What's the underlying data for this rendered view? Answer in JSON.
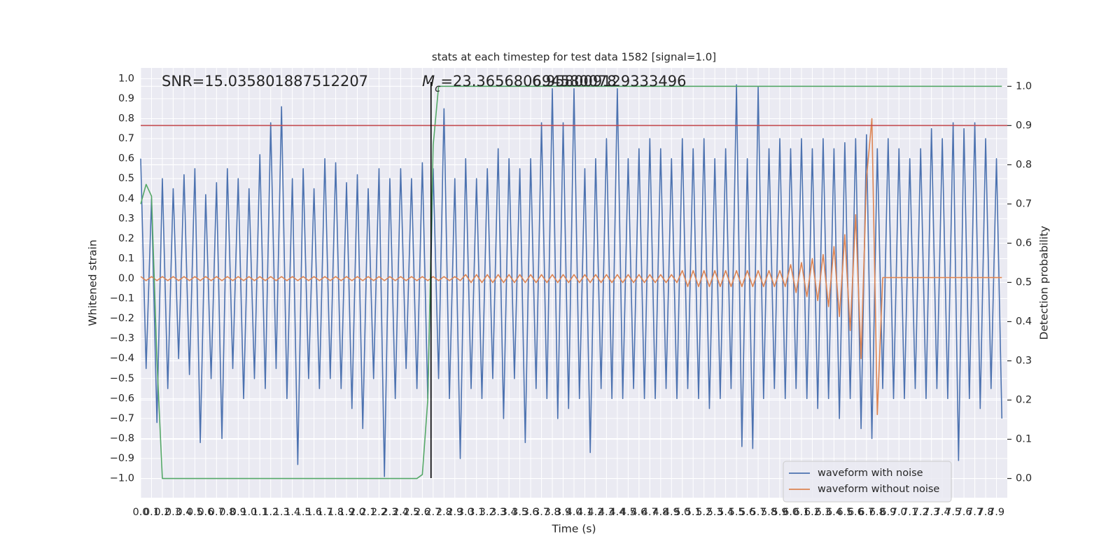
{
  "chart_data": {
    "type": "line",
    "title": "stats at each timestep for test data 1582 [signal=1.0]",
    "x_label": "Time (s)",
    "y_label": "Whitened strain",
    "y2_label": "Detection probability",
    "annotations": [
      {
        "text": "SNR=15.035801887512207"
      },
      {
        "symbol": "M",
        "subscript": "c",
        "text": "=23.365680694580078"
      },
      {
        "text": "6.958009129333496"
      }
    ],
    "x": [
      0,
      0.05,
      0.1,
      0.15,
      0.2,
      0.25,
      0.3,
      0.35,
      0.4,
      0.45,
      0.5,
      0.55,
      0.6,
      0.65,
      0.7,
      0.75,
      0.8,
      0.85,
      0.9,
      0.95,
      1,
      1.05,
      1.1,
      1.15,
      1.2,
      1.25,
      1.3,
      1.35,
      1.4,
      1.45,
      1.5,
      1.55,
      1.6,
      1.65,
      1.7,
      1.75,
      1.8,
      1.85,
      1.9,
      1.95,
      2,
      2.05,
      2.1,
      2.15,
      2.2,
      2.25,
      2.3,
      2.35,
      2.4,
      2.45,
      2.5,
      2.55,
      2.6,
      2.65,
      2.7,
      2.75,
      2.8,
      2.85,
      2.9,
      2.95,
      3,
      3.05,
      3.1,
      3.15,
      3.2,
      3.25,
      3.3,
      3.35,
      3.4,
      3.45,
      3.5,
      3.55,
      3.6,
      3.65,
      3.7,
      3.75,
      3.8,
      3.85,
      3.9,
      3.95,
      4,
      4.05,
      4.1,
      4.15,
      4.2,
      4.25,
      4.3,
      4.35,
      4.4,
      4.45,
      4.5,
      4.55,
      4.6,
      4.65,
      4.7,
      4.75,
      4.8,
      4.85,
      4.9,
      4.95,
      5,
      5.05,
      5.1,
      5.15,
      5.2,
      5.25,
      5.3,
      5.35,
      5.4,
      5.45,
      5.5,
      5.55,
      5.6,
      5.65,
      5.7,
      5.75,
      5.8,
      5.85,
      5.9,
      5.95,
      6,
      6.05,
      6.1,
      6.15,
      6.2,
      6.25,
      6.3,
      6.35,
      6.4,
      6.45,
      6.5,
      6.55,
      6.6,
      6.65,
      6.7,
      6.75,
      6.8,
      6.85,
      6.9,
      6.95,
      7,
      7.05,
      7.1,
      7.15,
      7.2,
      7.25,
      7.3,
      7.35,
      7.4,
      7.45,
      7.5,
      7.55,
      7.6,
      7.65,
      7.7,
      7.75,
      7.8,
      7.85,
      7.9,
      7.95
    ],
    "series": [
      {
        "name": "waveform with noise",
        "color": "#4c72b0",
        "values": [
          0.6,
          -0.45,
          0.4,
          -0.72,
          0.5,
          -0.55,
          0.45,
          -0.4,
          0.52,
          -0.48,
          0.55,
          -0.82,
          0.42,
          -0.5,
          0.48,
          -0.8,
          0.55,
          -0.45,
          0.5,
          -0.6,
          0.45,
          -0.5,
          0.62,
          -0.55,
          0.78,
          -0.45,
          0.86,
          -0.6,
          0.5,
          -0.93,
          0.55,
          -0.5,
          0.45,
          -0.55,
          0.6,
          -0.5,
          0.58,
          -0.55,
          0.48,
          -0.65,
          0.52,
          -0.75,
          0.45,
          -0.5,
          0.55,
          -0.99,
          0.5,
          -0.6,
          0.55,
          -0.45,
          0.5,
          -0.55,
          0.58,
          -0.6,
          0.55,
          -0.5,
          0.85,
          -0.6,
          0.5,
          -0.9,
          0.6,
          -0.55,
          0.5,
          -0.6,
          0.55,
          -0.5,
          0.65,
          -0.7,
          0.6,
          -0.5,
          0.55,
          -0.82,
          0.6,
          -0.55,
          0.78,
          -0.6,
          0.95,
          -0.7,
          0.78,
          -0.65,
          0.95,
          -0.6,
          0.55,
          -0.87,
          0.6,
          -0.55,
          0.7,
          -0.6,
          0.95,
          -0.6,
          0.6,
          -0.55,
          0.65,
          -0.6,
          0.7,
          -0.6,
          0.65,
          -0.55,
          0.6,
          -0.6,
          0.7,
          -0.55,
          0.65,
          -0.6,
          0.7,
          -0.65,
          0.6,
          -0.6,
          0.65,
          -0.55,
          0.97,
          -0.84,
          0.6,
          -0.85,
          0.96,
          -0.6,
          0.65,
          -0.55,
          0.7,
          -0.6,
          0.65,
          -0.55,
          0.7,
          -0.6,
          0.65,
          -0.65,
          0.7,
          -0.6,
          0.65,
          -0.7,
          0.68,
          -0.6,
          0.7,
          -0.75,
          0.72,
          -0.8,
          0.65,
          -0.55,
          0.7,
          -0.6,
          0.65,
          -0.6,
          0.6,
          -0.55,
          0.65,
          -0.6,
          0.75,
          -0.55,
          0.7,
          -0.6,
          0.78,
          -0.91,
          0.75,
          -0.6,
          0.78,
          -0.65,
          0.7,
          -0.55,
          0.6,
          -0.7
        ]
      },
      {
        "name": "waveform without noise",
        "color": "#dd8452",
        "values": [
          0.01,
          -0.01,
          0.01,
          -0.01,
          0.01,
          -0.01,
          0.01,
          -0.01,
          0.01,
          -0.01,
          0.01,
          -0.01,
          0.01,
          -0.01,
          0.01,
          -0.01,
          0.01,
          -0.01,
          0.01,
          -0.01,
          0.01,
          -0.01,
          0.01,
          -0.01,
          0.01,
          -0.01,
          0.01,
          -0.01,
          0.01,
          -0.01,
          0.01,
          -0.01,
          0.01,
          -0.01,
          0.01,
          -0.01,
          0.01,
          -0.01,
          0.01,
          -0.01,
          0.01,
          -0.01,
          0.01,
          -0.01,
          0.01,
          -0.01,
          0.01,
          -0.01,
          0.01,
          -0.01,
          0.01,
          -0.01,
          0.01,
          -0.01,
          0.01,
          -0.01,
          0.01,
          -0.01,
          0.01,
          -0.01,
          0.02,
          -0.02,
          0.02,
          -0.02,
          0.02,
          -0.02,
          0.02,
          -0.02,
          0.02,
          -0.02,
          0.02,
          -0.02,
          0.02,
          -0.02,
          0.02,
          -0.02,
          0.02,
          -0.02,
          0.02,
          -0.02,
          0.02,
          -0.02,
          0.02,
          -0.02,
          0.02,
          -0.02,
          0.02,
          -0.02,
          0.02,
          -0.02,
          0.02,
          -0.02,
          0.02,
          -0.02,
          0.02,
          -0.02,
          0.02,
          -0.02,
          0.02,
          -0.02,
          0.04,
          -0.04,
          0.04,
          -0.04,
          0.04,
          -0.04,
          0.04,
          -0.04,
          0.04,
          -0.04,
          0.04,
          -0.04,
          0.04,
          -0.04,
          0.04,
          -0.04,
          0.04,
          -0.04,
          0.04,
          -0.04,
          0.07,
          -0.07,
          0.08,
          -0.09,
          0.1,
          -0.11,
          0.12,
          -0.14,
          0.16,
          -0.19,
          0.22,
          -0.26,
          0.32,
          -0.4,
          0.5,
          0.8,
          -0.68,
          0.005,
          0.005,
          0.005,
          0.005,
          0.005,
          0.005,
          0.005,
          0.005,
          0.005,
          0.005,
          0.005,
          0.005,
          0.005,
          0.005,
          0.005,
          0.005,
          0.005,
          0.005,
          0.005,
          0.005,
          0.005,
          0.005,
          0.005
        ]
      },
      {
        "color": "#55a868",
        "axis": "y2",
        "values": [
          0.7,
          0.75,
          0.72,
          0.3,
          0,
          0,
          0,
          0,
          0,
          0,
          0,
          0,
          0,
          0,
          0,
          0,
          0,
          0,
          0,
          0,
          0,
          0,
          0,
          0,
          0,
          0,
          0,
          0,
          0,
          0,
          0,
          0,
          0,
          0,
          0,
          0,
          0,
          0,
          0,
          0,
          0,
          0,
          0,
          0,
          0,
          0,
          0,
          0,
          0,
          0,
          0,
          0,
          0.01,
          0.2,
          0.85,
          1,
          1,
          1,
          1,
          1,
          1,
          1,
          1,
          1,
          1,
          1,
          1,
          1,
          1,
          1,
          1,
          1,
          1,
          1,
          1,
          1,
          1,
          1,
          1,
          1,
          1,
          1,
          1,
          1,
          1,
          1,
          1,
          1,
          1,
          1,
          1,
          1,
          1,
          1,
          1,
          1,
          1,
          1,
          1,
          1,
          1,
          1,
          1,
          1,
          1,
          1,
          1,
          1,
          1,
          1,
          1,
          1,
          1,
          1,
          1,
          1,
          1,
          1,
          1,
          1,
          1,
          1,
          1,
          1,
          1,
          1,
          1,
          1,
          1,
          1,
          1,
          1,
          1,
          1,
          1,
          1,
          1,
          1,
          1,
          1,
          1,
          1,
          1,
          1,
          1,
          1,
          1,
          1,
          1,
          1,
          1,
          1,
          1,
          1,
          1,
          1,
          1,
          1,
          1,
          1
        ]
      }
    ],
    "hlines": [
      {
        "y": 0.9,
        "axis": "y2",
        "color": "#c44e52"
      }
    ],
    "vlines": [
      {
        "x": 2.68,
        "color": "#000000"
      }
    ],
    "xlim": [
      0,
      8
    ],
    "ylim": [
      -1.096,
      1.054
    ],
    "y2lim": [
      -0.049,
      1.047
    ],
    "xticks": [
      {
        "value": 0,
        "label": "0.0"
      },
      0.1,
      0.2,
      0.3,
      0.4,
      0.5,
      0.6,
      0.7,
      0.8,
      0.9,
      {
        "value": 1,
        "label": "1.0"
      },
      1.1,
      1.2,
      1.3,
      1.4,
      1.5,
      1.6,
      1.7,
      1.8,
      1.9,
      {
        "value": 2,
        "label": "2.0"
      },
      2.1,
      2.2,
      2.3,
      2.4,
      2.5,
      2.6,
      2.7,
      2.8,
      2.9,
      {
        "value": 3,
        "label": "3.0"
      },
      3.1,
      3.2,
      3.3,
      3.4,
      3.5,
      3.6,
      3.7,
      3.8,
      3.9,
      {
        "value": 4,
        "label": "4.0"
      },
      4.1,
      4.2,
      4.3,
      4.4,
      4.5,
      4.6,
      4.7,
      4.8,
      4.9,
      {
        "value": 5,
        "label": "5.0"
      },
      5.1,
      5.2,
      5.3,
      5.4,
      5.5,
      5.6,
      5.7,
      5.8,
      5.9,
      {
        "value": 6,
        "label": "6.0"
      },
      6.1,
      6.2,
      6.3,
      6.4,
      6.5,
      6.6,
      6.7,
      6.8,
      6.9,
      {
        "value": 7,
        "label": "7.0"
      },
      7.1,
      7.2,
      7.3,
      7.4,
      7.5,
      7.6,
      7.7,
      7.8,
      7.9
    ],
    "yticks": [
      {
        "value": -1,
        "label": "−1.0"
      },
      {
        "value": -0.9,
        "label": "−0.9"
      },
      {
        "value": -0.8,
        "label": "−0.8"
      },
      {
        "value": -0.7,
        "label": "−0.7"
      },
      {
        "value": -0.6,
        "label": "−0.6"
      },
      {
        "value": -0.5,
        "label": "−0.5"
      },
      {
        "value": -0.4,
        "label": "−0.4"
      },
      {
        "value": -0.3,
        "label": "−0.3"
      },
      {
        "value": -0.2,
        "label": "−0.2"
      },
      {
        "value": -0.1,
        "label": "−0.1"
      },
      {
        "value": 0,
        "label": "0.0"
      },
      0.1,
      0.2,
      0.3,
      0.4,
      0.5,
      0.6,
      0.7,
      0.8,
      0.9,
      {
        "value": 1,
        "label": "1.0"
      }
    ],
    "y2ticks": [
      {
        "value": 0,
        "label": "0.0"
      },
      0.1,
      0.2,
      0.3,
      0.4,
      0.5,
      0.6,
      0.7,
      0.8,
      0.9,
      {
        "value": 1,
        "label": "1.0"
      }
    ],
    "grid": true,
    "legend": "lower right"
  }
}
